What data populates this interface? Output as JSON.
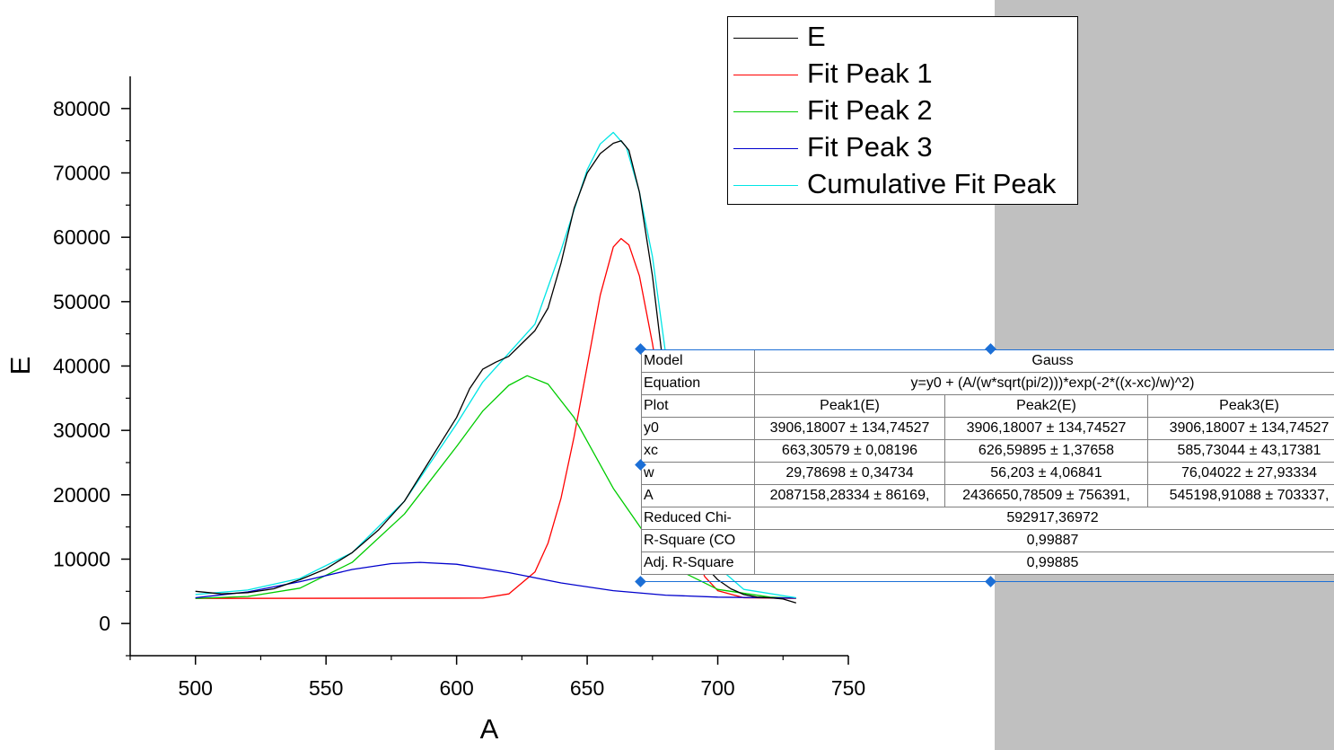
{
  "chart_data": {
    "type": "line",
    "xlabel": "A",
    "ylabel": "E",
    "xlim": [
      475,
      750
    ],
    "ylim": [
      -5000,
      85000
    ],
    "x_ticks": [
      500,
      550,
      600,
      650,
      700,
      750
    ],
    "y_ticks": [
      0,
      10000,
      20000,
      30000,
      40000,
      50000,
      60000,
      70000,
      80000
    ],
    "x_tick_labels": [
      "500",
      "550",
      "600",
      "650",
      "700",
      "750"
    ],
    "y_tick_labels": [
      "0",
      "10000",
      "20000",
      "30000",
      "40000",
      "50000",
      "60000",
      "70000",
      "80000"
    ],
    "legend_position": "top-right",
    "grid": false,
    "series": [
      {
        "name": "E",
        "color": "#000000",
        "x": [
          500,
          510,
          520,
          530,
          540,
          550,
          560,
          570,
          580,
          590,
          600,
          605,
          610,
          615,
          620,
          625,
          630,
          635,
          640,
          645,
          650,
          655,
          660,
          663,
          666,
          670,
          675,
          680,
          685,
          690,
          695,
          700,
          705,
          710,
          715,
          720,
          725,
          730
        ],
        "y": [
          5000,
          4600,
          4800,
          5400,
          6800,
          8500,
          11000,
          14500,
          19000,
          25500,
          32000,
          36500,
          39500,
          40600,
          41500,
          43500,
          45500,
          49000,
          56000,
          64500,
          70000,
          73000,
          74600,
          75000,
          73500,
          67000,
          54000,
          37000,
          23000,
          14000,
          9000,
          6800,
          5400,
          4500,
          4100,
          4000,
          3800,
          3200
        ]
      },
      {
        "name": "Fit Peak 1",
        "color": "#ff0000",
        "x": [
          500,
          610,
          620,
          630,
          635,
          640,
          645,
          650,
          655,
          660,
          663,
          666,
          670,
          675,
          680,
          685,
          690,
          695,
          700,
          710,
          730
        ],
        "y": [
          3906,
          3950,
          4600,
          8000,
          12500,
          19500,
          29000,
          40000,
          51000,
          58500,
          59800,
          58800,
          54000,
          43500,
          31000,
          20000,
          12000,
          7300,
          5100,
          4000,
          3906
        ]
      },
      {
        "name": "Fit Peak 2",
        "color": "#00cc00",
        "x": [
          500,
          520,
          540,
          560,
          580,
          600,
          610,
          620,
          627,
          635,
          645,
          660,
          680,
          700,
          720,
          730
        ],
        "y": [
          3906,
          4200,
          5500,
          9500,
          17000,
          27500,
          33000,
          37000,
          38500,
          37200,
          32000,
          21000,
          9300,
          5300,
          4100,
          3950
        ]
      },
      {
        "name": "Fit Peak 3",
        "color": "#0000cc",
        "x": [
          500,
          520,
          540,
          560,
          575,
          586,
          600,
          620,
          640,
          660,
          680,
          700,
          730
        ],
        "y": [
          4000,
          4900,
          6500,
          8400,
          9300,
          9500,
          9200,
          7900,
          6300,
          5100,
          4400,
          4100,
          3950
        ]
      },
      {
        "name": "Cumulative Fit Peak",
        "color": "#00e5e5",
        "x": [
          500,
          520,
          540,
          560,
          580,
          600,
          610,
          620,
          630,
          640,
          650,
          655,
          660,
          665,
          670,
          675,
          680,
          690,
          700,
          710,
          730
        ],
        "y": [
          4500,
          5200,
          7000,
          11000,
          19000,
          31000,
          37500,
          42000,
          46500,
          58000,
          70500,
          74500,
          76300,
          74000,
          67000,
          57000,
          42000,
          19500,
          8800,
          5300,
          4000
        ]
      }
    ]
  },
  "fit_table": {
    "rows": [
      [
        "Model",
        "Gauss"
      ],
      [
        "Equation",
        "y=y0 + (A/(w*sqrt(pi/2)))*exp(-2*((x-xc)/w)^2)"
      ],
      [
        "Plot",
        "Peak1(E)",
        "Peak2(E)",
        "Peak3(E)"
      ],
      [
        "y0",
        "3906,18007 ± 134,74527",
        "3906,18007 ± 134,74527",
        "3906,18007 ± 134,74527"
      ],
      [
        "xc",
        "663,30579 ± 0,08196",
        "626,59895 ± 1,37658",
        "585,73044 ± 43,17381"
      ],
      [
        "w",
        "29,78698 ± 0,34734",
        "56,203 ± 4,06841",
        "76,04022 ± 27,93334"
      ],
      [
        "A",
        "2087158,28334 ± 86169,",
        "2436650,78509 ± 756391,",
        "545198,91088 ± 703337,"
      ],
      [
        "Reduced Chi-",
        "592917,36972"
      ],
      [
        "R-Square (CO",
        "0,99887"
      ],
      [
        "Adj. R-Square",
        "0,99885"
      ]
    ]
  }
}
